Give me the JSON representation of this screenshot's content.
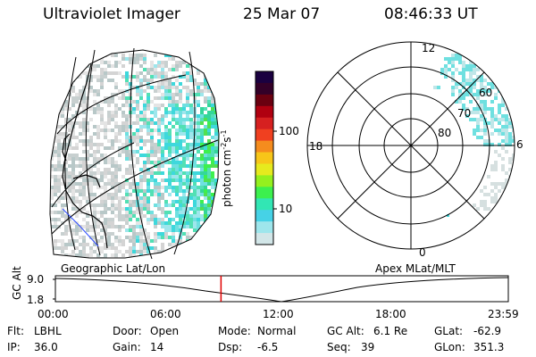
{
  "header": {
    "instrument": "Ultraviolet Imager",
    "date": "25 Mar 07",
    "time": "08:46:33 UT"
  },
  "colorbar": {
    "unit_main": "photon cm",
    "unit_exp1": "-2",
    "unit_s": "s",
    "unit_exp2": "-1",
    "tick_labels": [
      "100",
      "10"
    ],
    "colors": [
      "#1a0040",
      "#330028",
      "#6a0010",
      "#b00010",
      "#d62020",
      "#f04020",
      "#f58c1e",
      "#f7c619",
      "#e6ea1e",
      "#94f01e",
      "#3cf04e",
      "#32e6b4",
      "#46d2e6",
      "#9ee6ec",
      "#d2e6e8"
    ]
  },
  "map": {
    "label": "Geographic Lat/Lon"
  },
  "polar": {
    "label": "Apex MLat/MLT",
    "mlt_labels": {
      "top": "12",
      "bottom": "0",
      "left": "18",
      "right": "6"
    },
    "lat_labels": [
      "60",
      "70",
      "80"
    ]
  },
  "timeline": {
    "y_label": "GC Alt",
    "y_ticks": [
      "9.0",
      "1.8"
    ],
    "x_ticks": [
      "00:00",
      "06:00",
      "12:00",
      "18:00",
      "23:59"
    ],
    "current_time_fraction": 0.3657,
    "marker_color": "#e00000"
  },
  "footer": {
    "flt_label": "Flt:",
    "flt_value": "LBHL",
    "ip_label": "IP:",
    "ip_value": "36.0",
    "door_label": "Door:",
    "door_value": "Open",
    "gain_label": "Gain:",
    "gain_value": "14",
    "mode_label": "Mode:",
    "mode_value": "Normal",
    "dsp_label": "Dsp:",
    "dsp_value": "-6.5",
    "gcalt_label": "GC Alt:",
    "gcalt_value": "6.1 Re",
    "seq_label": "Seq:",
    "seq_value": "39",
    "glat_label": "GLat:",
    "glat_value": "-62.9",
    "glon_label": "GLon:",
    "glon_value": "351.3"
  }
}
